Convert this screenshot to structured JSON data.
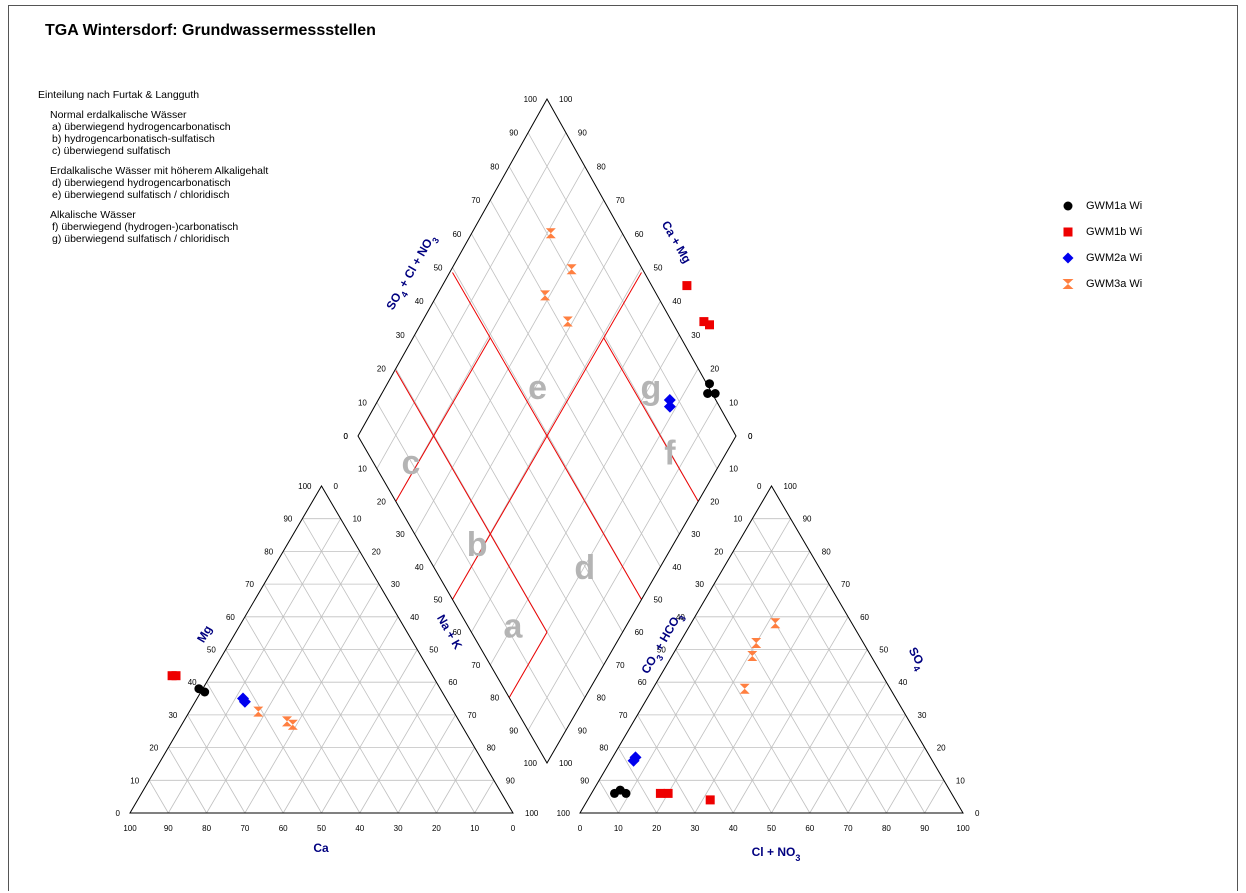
{
  "title": "TGA Wintersdorf: Grundwassermessstellen",
  "classification": {
    "heading": "Einteilung nach Furtak & Langguth",
    "groups": [
      {
        "title": "Normal erdalkalische Wässer",
        "items": [
          "a) überwiegend hydrogencarbonatisch",
          "b) hydrogencarbonatisch-sulfatisch",
          "c) überwiegend sulfatisch"
        ]
      },
      {
        "title": "Erdalkalische Wässer mit höherem Alkaligehalt",
        "items": [
          "d) überwiegend hydrogencarbonatisch",
          "e) überwiegend sulfatisch / chloridisch"
        ]
      },
      {
        "title": "Alkalische Wässer",
        "items": [
          "f) überwiegend (hydrogen-)carbonatisch",
          "g) überwiegend sulfatisch / chloridisch"
        ]
      }
    ]
  },
  "legend": [
    {
      "label": "GWM1a Wi",
      "color": "#000000",
      "marker": "circle"
    },
    {
      "label": "GWM1b Wi",
      "color": "#ee0000",
      "marker": "square"
    },
    {
      "label": "GWM2a Wi",
      "color": "#0000ee",
      "marker": "diamond"
    },
    {
      "label": "GWM3a Wi",
      "color": "#ff7f40",
      "marker": "hourglass"
    }
  ],
  "colors": {
    "axis_label": "#000080",
    "zone_line": "#ee0000",
    "zone_letter": "#b4b4b4",
    "grid": "#c0c0c0"
  },
  "chart_data": {
    "type": "piper",
    "ticks": [
      "0",
      "10",
      "20",
      "30",
      "40",
      "50",
      "60",
      "70",
      "80",
      "90",
      "100"
    ],
    "axis_labels": {
      "cation_bottom": "Ca",
      "cation_left": "Mg",
      "cation_right": "Na + K",
      "anion_bottom": "Cl + NO3",
      "anion_left": "CO3 + HCO3",
      "anion_right": "SO4",
      "diamond_upper_left": "SO4 + Cl + NO3",
      "diamond_upper_right": "Ca + Mg"
    },
    "zone_letters": [
      "a",
      "b",
      "c",
      "d",
      "e",
      "f",
      "g"
    ],
    "series": [
      {
        "name": "GWM1a Wi",
        "cations": [
          {
            "ca": 63,
            "mg": 38
          },
          {
            "ca": 62,
            "mg": 37
          }
        ],
        "anions": [
          {
            "cl_no3": 6,
            "so4": 6
          },
          {
            "cl_no3": 7,
            "so4": 7
          },
          {
            "cl_no3": 9,
            "so4": 6
          }
        ]
      },
      {
        "name": "GWM1b Wi",
        "cations": [
          {
            "ca": 68,
            "mg": 42
          },
          {
            "ca": 67,
            "mg": 42
          }
        ],
        "anions": [
          {
            "cl_no3": 18,
            "so4": 6
          },
          {
            "cl_no3": 20,
            "so4": 6
          },
          {
            "cl_no3": 32,
            "so4": 4
          }
        ]
      },
      {
        "name": "GWM2a Wi",
        "cations": [
          {
            "ca": 53,
            "mg": 35
          },
          {
            "ca": 53,
            "mg": 34
          }
        ],
        "anions": [
          {
            "cl_no3": 6,
            "so4": 17
          },
          {
            "cl_no3": 6,
            "so4": 16
          }
        ]
      },
      {
        "name": "GWM3a Wi",
        "cations": [
          {
            "ca": 51,
            "mg": 31
          },
          {
            "ca": 45,
            "mg": 28
          },
          {
            "ca": 44,
            "mg": 27
          }
        ],
        "anions": [
          {
            "cl_no3": 21,
            "so4": 48
          },
          {
            "cl_no3": 24,
            "so4": 38
          },
          {
            "cl_no3": 20,
            "so4": 52
          },
          {
            "cl_no3": 22,
            "so4": 58
          }
        ]
      }
    ]
  }
}
